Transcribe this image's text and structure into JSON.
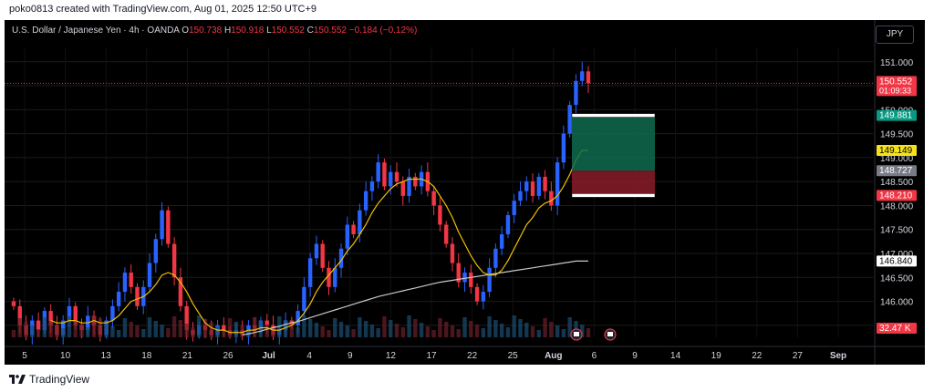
{
  "header": {
    "credit": "poko0813 created with TradingView.com, Aug 01, 2025 12:50 UTC+9"
  },
  "legend": {
    "symbol": "U.S. Dollar / Japanese Yen · 4h · OANDA",
    "o_label": "O",
    "o_value": "150.738",
    "h_label": "H",
    "h_value": "150.918",
    "l_label": "L",
    "l_value": "150.552",
    "c_label": "C",
    "c_value": "150.552",
    "change": "−0.184 (−0.12%)"
  },
  "currency_button": "JPY",
  "footer": {
    "brand": "TradingView"
  },
  "colors": {
    "up": "#2962ff",
    "down": "#f23645",
    "ma_fast": "#f0c000",
    "ma_slow": "#c8c8c8",
    "profit_zone": "#0f6b4f",
    "loss_zone": "#8a1c2a",
    "grid": "#1c1c1c",
    "axis_text": "#d1d4dc"
  },
  "chart_data": {
    "type": "candlestick",
    "symbol": "USDJPY",
    "timeframe": "4h",
    "ylim": [
      145.25,
      151.3
    ],
    "y_ticks": [
      "151.000",
      "150.500",
      "150.000",
      "149.500",
      "149.000",
      "148.500",
      "148.000",
      "147.500",
      "147.000",
      "146.500",
      "146.000",
      "145.500"
    ],
    "x_ticks": [
      "5",
      "10",
      "13",
      "18",
      "21",
      "26",
      "Jul",
      "4",
      "9",
      "12",
      "17",
      "22",
      "25",
      "Aug",
      "6",
      "9",
      "14",
      "19",
      "22",
      "27",
      "Sep"
    ],
    "price_labels": [
      {
        "text": "150.552",
        "sub": "01:09:33",
        "color": "#f23645",
        "value": 150.552
      },
      {
        "text": "149.881",
        "color": "#089981",
        "value": 149.881
      },
      {
        "text": "149.149",
        "color": "#f5e31a",
        "value": 149.149
      },
      {
        "text": "148.727",
        "color": "#787b86",
        "value": 148.727
      },
      {
        "text": "148.210",
        "color": "#f23645",
        "value": 148.21
      },
      {
        "text": "146.840",
        "color": "#ffffff",
        "value": 146.84
      },
      {
        "text": "32.47 K",
        "color": "#f23645",
        "value": null
      }
    ],
    "close_path": [
      145.9,
      145.5,
      145.3,
      145.6,
      145.4,
      145.8,
      145.5,
      145.3,
      145.6,
      145.9,
      145.5,
      145.4,
      145.7,
      145.5,
      145.3,
      145.6,
      145.9,
      146.2,
      146.6,
      146.3,
      145.9,
      146.3,
      146.8,
      147.3,
      147.9,
      147.2,
      146.5,
      145.9,
      145.4,
      145.3,
      145.5,
      145.4,
      145.3,
      145.5,
      145.4,
      145.3,
      145.4,
      145.3,
      145.5,
      145.4,
      145.6,
      145.5,
      145.3,
      145.4,
      145.6,
      145.5,
      145.8,
      146.3,
      146.9,
      147.2,
      146.7,
      146.3,
      146.7,
      147.1,
      147.6,
      147.4,
      147.9,
      148.3,
      148.5,
      148.9,
      148.4,
      148.7,
      148.5,
      148.2,
      148.6,
      148.4,
      148.7,
      148.3,
      148.0,
      147.6,
      147.2,
      146.8,
      146.4,
      146.6,
      146.3,
      146.0,
      146.2,
      146.7,
      147.1,
      147.4,
      147.8,
      148.1,
      148.3,
      148.5,
      148.2,
      148.6,
      148.3,
      148.0,
      148.9,
      149.5,
      150.1,
      150.6,
      150.8,
      150.55
    ],
    "ma_fast": [
      null,
      null,
      null,
      null,
      null,
      null,
      145.6,
      145.55,
      145.55,
      145.6,
      145.6,
      145.55,
      145.55,
      145.6,
      145.55,
      145.55,
      145.6,
      145.7,
      145.85,
      146.0,
      146.05,
      146.1,
      146.2,
      146.35,
      146.55,
      146.6,
      146.55,
      146.4,
      146.2,
      145.95,
      145.75,
      145.55,
      145.45,
      145.4,
      145.4,
      145.35,
      145.35,
      145.35,
      145.4,
      145.4,
      145.45,
      145.45,
      145.4,
      145.4,
      145.45,
      145.5,
      145.6,
      145.75,
      145.95,
      146.2,
      146.4,
      146.55,
      146.7,
      146.85,
      147.05,
      147.2,
      147.4,
      147.6,
      147.85,
      148.05,
      148.2,
      148.35,
      148.45,
      148.5,
      148.55,
      148.55,
      148.55,
      148.5,
      148.4,
      148.2,
      148.0,
      147.75,
      147.45,
      147.2,
      146.95,
      146.75,
      146.6,
      146.55,
      146.55,
      146.65,
      146.85,
      147.1,
      147.35,
      147.6,
      147.75,
      147.95,
      148.05,
      148.1,
      148.2,
      148.4,
      148.65,
      148.95,
      149.15,
      149.149
    ],
    "ma_slow": [
      null,
      null,
      null,
      null,
      null,
      null,
      null,
      null,
      null,
      null,
      null,
      null,
      null,
      null,
      null,
      null,
      null,
      null,
      null,
      null,
      null,
      null,
      null,
      null,
      null,
      null,
      null,
      null,
      null,
      null,
      null,
      null,
      null,
      null,
      null,
      null,
      null,
      145.3,
      145.32,
      145.35,
      145.38,
      145.42,
      145.45,
      145.48,
      145.52,
      145.55,
      145.58,
      145.62,
      145.66,
      145.7,
      145.74,
      145.78,
      145.82,
      145.86,
      145.9,
      145.94,
      145.98,
      146.02,
      146.06,
      146.1,
      146.13,
      146.16,
      146.19,
      146.22,
      146.25,
      146.28,
      146.31,
      146.34,
      146.37,
      146.4,
      146.42,
      146.44,
      146.46,
      146.48,
      146.5,
      146.52,
      146.54,
      146.56,
      146.58,
      146.6,
      146.62,
      146.64,
      146.66,
      146.68,
      146.7,
      146.72,
      146.74,
      146.76,
      146.78,
      146.8,
      146.82,
      146.84,
      146.84,
      146.84
    ],
    "position": {
      "entry": 148.727,
      "take_profit": 149.881,
      "stop_loss": 148.21
    }
  }
}
